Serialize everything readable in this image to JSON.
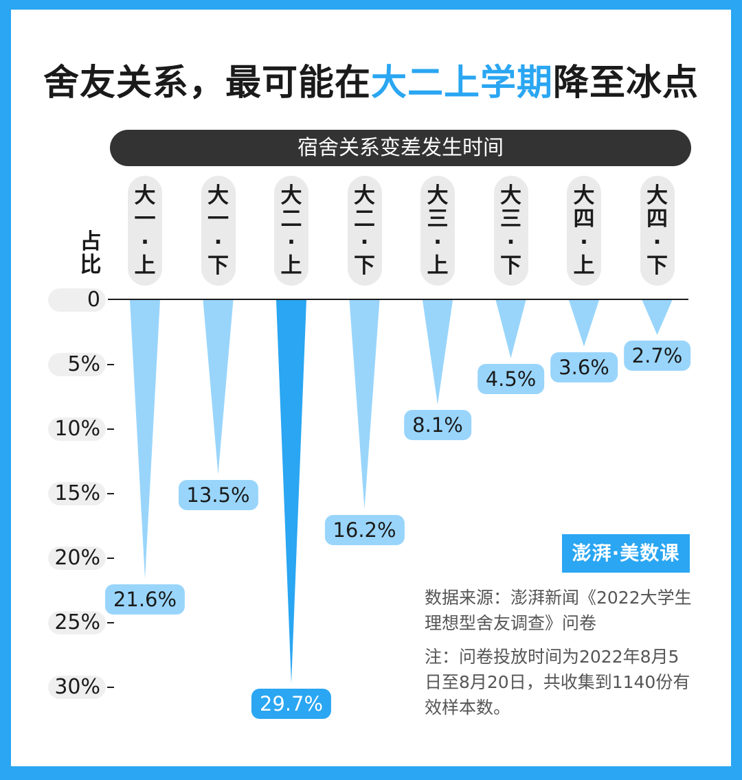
{
  "title": {
    "part1": "舍友关系，最可能在",
    "highlight": "大二上学期",
    "part2": "降至冰点"
  },
  "header_pill": "宿舍关系变差发生时间",
  "y_axis_label": [
    "占",
    "比"
  ],
  "y_ticks": [
    "0",
    "5%",
    "10%",
    "15%",
    "20%",
    "25%",
    "30%"
  ],
  "categories": [
    [
      "大一",
      "·",
      "上"
    ],
    [
      "大一",
      "·",
      "下"
    ],
    [
      "大二",
      "·",
      "上"
    ],
    [
      "大二",
      "·",
      "下"
    ],
    [
      "大三",
      "·",
      "上"
    ],
    [
      "大三",
      "·",
      "下"
    ],
    [
      "大四",
      "·",
      "上"
    ],
    [
      "大四",
      "·",
      "下"
    ]
  ],
  "logo_text": "澎湃·美数课",
  "source": "数据来源：澎湃新闻《2022大学生理想型舍友调查》问卷",
  "note": "注：问卷投放时间为2022年8月5日至8月20日，共收集到1140份有效样本数。",
  "colors": {
    "accent": "#2aa6f2",
    "cone_light": "#99d5fb",
    "cone_highlight": "#2aa6f2",
    "label_light": "#99d5fb",
    "label_highlight": "#2aa6f2"
  },
  "chart_data": {
    "type": "bar",
    "orientation": "downward",
    "title": "宿舍关系变差发生时间",
    "ylabel": "占比",
    "categories": [
      "大一·上",
      "大一·下",
      "大二·上",
      "大二·下",
      "大三·上",
      "大三·下",
      "大四·上",
      "大四·下"
    ],
    "values": [
      21.6,
      13.5,
      29.7,
      16.2,
      8.1,
      4.5,
      3.6,
      2.7
    ],
    "value_labels": [
      "21.6%",
      "13.5%",
      "29.7%",
      "16.2%",
      "8.1%",
      "4.5%",
      "3.6%",
      "2.7%"
    ],
    "ylim": [
      0,
      30
    ],
    "highlight_index": 2,
    "grid": false
  }
}
